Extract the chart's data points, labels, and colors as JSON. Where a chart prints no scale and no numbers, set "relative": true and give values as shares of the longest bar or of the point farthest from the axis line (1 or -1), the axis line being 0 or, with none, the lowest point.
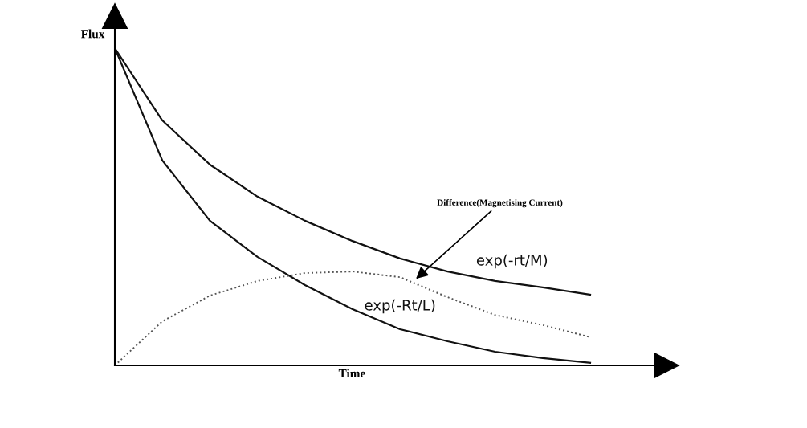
{
  "chart_data": {
    "type": "line",
    "relative": true,
    "xlabel": "Time",
    "ylabel": "Flux",
    "legend": false,
    "marker": "none",
    "categories": [
      null,
      null,
      null,
      null,
      null,
      null,
      null,
      null,
      null,
      null,
      null
    ],
    "series": [
      {
        "name": "exp(-rt/M)",
        "color": "#111111",
        "line_style": "solid",
        "values": [
          1,
          0.772,
          0.633,
          0.532,
          0.456,
          0.392,
          0.337,
          0.296,
          0.266,
          0.246,
          0.223
        ]
      },
      {
        "name": "exp(-Rt/L)",
        "color": "#111111",
        "line_style": "solid",
        "values": [
          1,
          0.646,
          0.456,
          0.342,
          0.253,
          0.177,
          0.114,
          0.076,
          0.043,
          0.023,
          0.008
        ]
      },
      {
        "name": "Difference(Magnetising Current)",
        "color": "#555555",
        "line_style": "dotted",
        "values": [
          0,
          0.139,
          0.22,
          0.266,
          0.291,
          0.296,
          0.278,
          0.215,
          0.159,
          0.127,
          0.089
        ]
      }
    ]
  }
}
